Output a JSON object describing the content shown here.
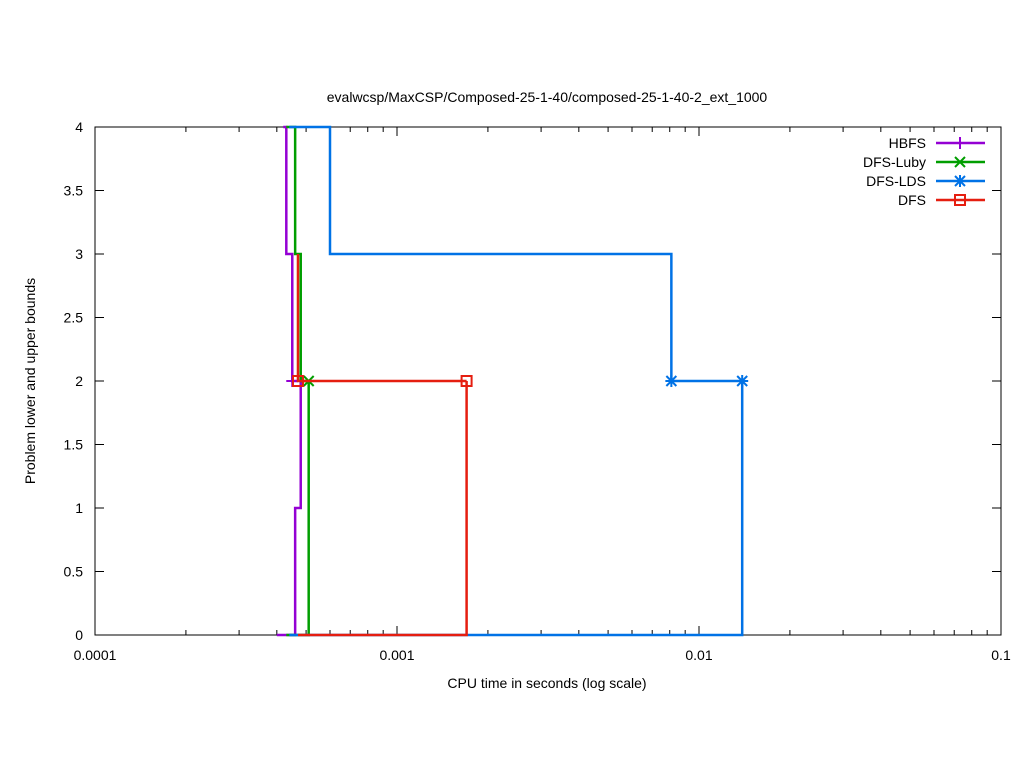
{
  "chart_data": {
    "type": "line",
    "title": "evalwcsp/MaxCSP/Composed-25-1-40/composed-25-1-40-2_ext_1000",
    "xlabel": "CPU time in seconds (log scale)",
    "ylabel": "Problem lower and upper bounds",
    "xscale": "log",
    "xlim": [
      0.0001,
      0.1
    ],
    "ylim": [
      0,
      4
    ],
    "x_ticks": [
      {
        "value": 0.0001,
        "label": "0.0001"
      },
      {
        "value": 0.001,
        "label": "0.001"
      },
      {
        "value": 0.01,
        "label": "0.01"
      },
      {
        "value": 0.1,
        "label": "0.1"
      }
    ],
    "y_ticks": [
      {
        "value": 0,
        "label": "0"
      },
      {
        "value": 0.5,
        "label": "0.5"
      },
      {
        "value": 1,
        "label": "1"
      },
      {
        "value": 1.5,
        "label": "1.5"
      },
      {
        "value": 2,
        "label": "2"
      },
      {
        "value": 2.5,
        "label": "2.5"
      },
      {
        "value": 3,
        "label": "3"
      },
      {
        "value": 3.5,
        "label": "3.5"
      },
      {
        "value": 4,
        "label": "4"
      }
    ],
    "grid": false,
    "legend_position": "top-right",
    "series": [
      {
        "name": "HBFS",
        "color": "#9400d3",
        "marker": "plus",
        "upper": [
          [
            0.00042,
            4
          ],
          [
            0.00043,
            4
          ],
          [
            0.00043,
            3
          ],
          [
            0.00045,
            3
          ],
          [
            0.00045,
            2
          ],
          [
            0.00047,
            2
          ]
        ],
        "lower": [
          [
            0.0004,
            0
          ],
          [
            0.00046,
            0
          ],
          [
            0.00046,
            1
          ],
          [
            0.00048,
            1
          ],
          [
            0.00048,
            2
          ]
        ],
        "markers": [
          [
            0.00045,
            2
          ]
        ]
      },
      {
        "name": "DFS-Luby",
        "color": "#009e00",
        "marker": "cross",
        "upper": [
          [
            0.00043,
            4
          ],
          [
            0.00046,
            4
          ],
          [
            0.00046,
            3
          ],
          [
            0.00048,
            3
          ],
          [
            0.00048,
            2
          ],
          [
            0.00051,
            2
          ]
        ],
        "lower": [
          [
            0.00043,
            0
          ],
          [
            0.00051,
            0
          ],
          [
            0.00051,
            2
          ]
        ],
        "markers": [
          [
            0.00051,
            2
          ]
        ]
      },
      {
        "name": "DFS-LDS",
        "color": "#0072e6",
        "marker": "star",
        "upper": [
          [
            0.00044,
            4
          ],
          [
            0.0006,
            4
          ],
          [
            0.0006,
            3
          ],
          [
            0.0081,
            3
          ],
          [
            0.0081,
            2
          ],
          [
            0.0139,
            2
          ]
        ],
        "lower": [
          [
            0.00044,
            0
          ],
          [
            0.0139,
            0
          ],
          [
            0.0139,
            2
          ]
        ],
        "markers": [
          [
            0.0081,
            2
          ],
          [
            0.0139,
            2
          ]
        ]
      },
      {
        "name": "DFS",
        "color": "#e51e10",
        "marker": "square",
        "upper": [
          [
            0.00047,
            3
          ],
          [
            0.00047,
            2
          ],
          [
            0.0017,
            2
          ]
        ],
        "lower": [
          [
            0.00047,
            0
          ],
          [
            0.0017,
            0
          ],
          [
            0.0017,
            2
          ]
        ],
        "markers": [
          [
            0.00047,
            2
          ],
          [
            0.0017,
            2
          ]
        ]
      }
    ]
  }
}
